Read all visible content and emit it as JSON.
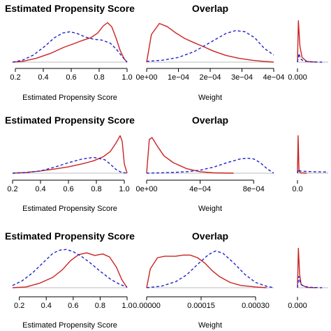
{
  "colors": {
    "treated": "#cc2222",
    "control": "#2222cc",
    "axis": "#000000",
    "baseline": "#bbbbbb"
  },
  "chart_data": [
    {
      "type": "line",
      "row": 1,
      "col": 1,
      "title": "Estimated Propensity Score",
      "xlabel": "Estimated Propensity Score",
      "xlim": [
        0.18,
        1.0
      ],
      "ylim": [
        0,
        1.08
      ],
      "xticks": [
        0.2,
        0.4,
        0.6,
        0.8,
        1.0
      ],
      "xtick_labels": [
        "0.2",
        "0.4",
        "0.6",
        "0.8",
        "1.0"
      ],
      "series": [
        {
          "role": "treated",
          "style": "solid",
          "x": [
            0.18,
            0.25,
            0.35,
            0.45,
            0.55,
            0.62,
            0.68,
            0.74,
            0.79,
            0.83,
            0.86,
            0.89,
            0.92,
            0.95,
            0.98,
            1.0
          ],
          "y": [
            0.0,
            0.02,
            0.1,
            0.22,
            0.38,
            0.47,
            0.55,
            0.62,
            0.74,
            0.92,
            1.0,
            0.9,
            0.62,
            0.3,
            0.08,
            0.0
          ]
        },
        {
          "role": "control",
          "style": "dashed",
          "x": [
            0.18,
            0.25,
            0.33,
            0.41,
            0.48,
            0.54,
            0.59,
            0.64,
            0.7,
            0.76,
            0.82,
            0.88,
            0.93,
            0.97,
            1.0
          ],
          "y": [
            0.0,
            0.05,
            0.18,
            0.4,
            0.62,
            0.74,
            0.77,
            0.73,
            0.64,
            0.58,
            0.56,
            0.48,
            0.3,
            0.12,
            0.0
          ]
        }
      ]
    },
    {
      "type": "line",
      "row": 1,
      "col": 2,
      "title": "Overlap",
      "xlabel": "Weight",
      "xlim": [
        0,
        0.0004
      ],
      "ylim": [
        0,
        1.08
      ],
      "xticks": [
        0,
        0.0001,
        0.0002,
        0.0003,
        0.0004
      ],
      "xtick_labels": [
        "0e+00",
        "1e−04",
        "2e−04",
        "3e−04",
        "4e−04"
      ],
      "series": [
        {
          "role": "treated",
          "style": "solid",
          "x": [
            0.0,
            1.5e-05,
            4e-05,
            6.5e-05,
            9e-05,
            0.00012,
            0.00015,
            0.00018,
            0.00021,
            0.00025,
            0.00029,
            0.00033,
            0.00037,
            0.0004
          ],
          "y": [
            0.0,
            0.7,
            0.98,
            0.9,
            0.75,
            0.6,
            0.49,
            0.39,
            0.28,
            0.17,
            0.1,
            0.05,
            0.02,
            0.0
          ]
        },
        {
          "role": "control",
          "style": "dashed",
          "x": [
            0.0,
            5e-05,
            0.0001,
            0.00015,
            0.0002,
            0.00025,
            0.00028,
            0.00031,
            0.00034,
            0.00037,
            0.0004
          ],
          "y": [
            0.02,
            0.05,
            0.12,
            0.27,
            0.5,
            0.73,
            0.8,
            0.77,
            0.62,
            0.35,
            0.18
          ]
        }
      ]
    },
    {
      "type": "line",
      "row": 1,
      "col": 3,
      "title": "",
      "xlabel": "",
      "xlim": [
        0,
        0.001
      ],
      "ylim": [
        0,
        1.08
      ],
      "xticks": [
        0
      ],
      "xtick_labels": [
        "0.000"
      ],
      "series": [
        {
          "role": "treated",
          "style": "solid",
          "x": [
            0.0,
            3e-05,
            8e-05,
            0.00015,
            0.0003,
            0.0006
          ],
          "y": [
            0.0,
            1.05,
            0.4,
            0.12,
            0.02,
            0.0
          ]
        },
        {
          "role": "control",
          "style": "dashed",
          "x": [
            0.0,
            5e-05,
            0.0001,
            0.0002,
            0.0004,
            0.0008
          ],
          "y": [
            0.0,
            0.22,
            0.08,
            0.03,
            0.01,
            0.0
          ]
        }
      ]
    },
    {
      "type": "line",
      "row": 2,
      "col": 1,
      "title": "Estimated Propensity Score",
      "xlabel": "Estimated Propensity Score",
      "xlim": [
        0.2,
        1.02
      ],
      "ylim": [
        0,
        1.08
      ],
      "xticks": [
        0.2,
        0.4,
        0.6,
        0.8,
        1.0
      ],
      "xtick_labels": [
        "0.2",
        "0.4",
        "0.6",
        "0.8",
        "1.0"
      ],
      "series": [
        {
          "role": "treated",
          "style": "solid",
          "x": [
            0.2,
            0.3,
            0.4,
            0.5,
            0.6,
            0.7,
            0.78,
            0.85,
            0.9,
            0.94,
            0.97,
            0.985,
            1.0,
            1.02
          ],
          "y": [
            0.0,
            0.02,
            0.06,
            0.11,
            0.17,
            0.25,
            0.33,
            0.44,
            0.58,
            0.8,
            1.0,
            0.85,
            0.25,
            0.0
          ]
        },
        {
          "role": "control",
          "style": "dashed",
          "x": [
            0.2,
            0.3,
            0.4,
            0.5,
            0.6,
            0.7,
            0.78,
            0.86,
            0.9,
            0.94,
            0.98,
            1.02
          ],
          "y": [
            0.0,
            0.02,
            0.06,
            0.16,
            0.28,
            0.38,
            0.42,
            0.36,
            0.24,
            0.1,
            0.02,
            0.0
          ]
        }
      ]
    },
    {
      "type": "line",
      "row": 2,
      "col": 2,
      "title": "Overlap",
      "xlabel": "Weight",
      "xlim": [
        0,
        0.00095
      ],
      "ylim": [
        0,
        1.08
      ],
      "xticks": [
        0,
        0.0004,
        0.0008
      ],
      "xtick_labels": [
        "0e+00",
        "4e−04",
        "8e−04"
      ],
      "series": [
        {
          "role": "treated",
          "style": "solid",
          "x": [
            0.0,
            2e-05,
            4e-05,
            8e-05,
            0.00013,
            0.0002,
            0.0003,
            0.0004,
            0.0005,
            0.00065
          ],
          "y": [
            0.0,
            0.9,
            0.95,
            0.72,
            0.46,
            0.28,
            0.12,
            0.04,
            0.01,
            0.0
          ]
        },
        {
          "role": "control",
          "style": "dashed",
          "x": [
            0.0,
            0.0001,
            0.0002,
            0.0003,
            0.0004,
            0.0005,
            0.0006,
            0.0007,
            0.00075,
            0.0008,
            0.00085,
            0.0009,
            0.00095
          ],
          "y": [
            0.0,
            0.01,
            0.02,
            0.04,
            0.08,
            0.16,
            0.28,
            0.38,
            0.4,
            0.38,
            0.28,
            0.12,
            0.0
          ]
        }
      ]
    },
    {
      "type": "line",
      "row": 2,
      "col": 3,
      "title": "",
      "xlabel": "",
      "xlim": [
        0,
        0.001
      ],
      "ylim": [
        0,
        1.08
      ],
      "xticks": [
        0
      ],
      "xtick_labels": [
        "0.0"
      ],
      "series": [
        {
          "role": "treated",
          "style": "solid",
          "x": [
            0.0,
            2e-05,
            5e-05,
            0.0001,
            0.0003
          ],
          "y": [
            0.0,
            1.0,
            0.05,
            0.01,
            0.0
          ]
        },
        {
          "role": "control",
          "style": "dashed",
          "x": [
            0.0,
            3e-05,
            8e-05,
            0.0002,
            0.0005,
            0.001
          ],
          "y": [
            0.0,
            0.1,
            0.06,
            0.05,
            0.04,
            0.03
          ]
        }
      ]
    },
    {
      "type": "line",
      "row": 3,
      "col": 1,
      "title": "Estimated Propensity Score",
      "xlabel": "Estimated Propensity Score",
      "xlim": [
        0.15,
        1.0
      ],
      "ylim": [
        0,
        1.08
      ],
      "xticks": [
        0.2,
        0.4,
        0.6,
        0.8,
        1.0
      ],
      "xtick_labels": [
        "0.2",
        "0.4",
        "0.6",
        "0.8",
        "1.0"
      ],
      "series": [
        {
          "role": "treated",
          "style": "solid",
          "x": [
            0.15,
            0.25,
            0.35,
            0.45,
            0.52,
            0.58,
            0.64,
            0.7,
            0.76,
            0.82,
            0.87,
            0.92,
            0.96,
            1.0
          ],
          "y": [
            0.0,
            0.02,
            0.12,
            0.28,
            0.48,
            0.72,
            0.88,
            0.93,
            0.86,
            0.9,
            0.82,
            0.55,
            0.22,
            0.0
          ]
        },
        {
          "role": "control",
          "style": "dashed",
          "x": [
            0.15,
            0.22,
            0.3,
            0.38,
            0.45,
            0.5,
            0.55,
            0.6,
            0.66,
            0.72,
            0.8,
            0.88,
            0.95,
            1.0
          ],
          "y": [
            0.06,
            0.18,
            0.4,
            0.68,
            0.92,
            1.0,
            1.02,
            0.96,
            0.84,
            0.68,
            0.44,
            0.22,
            0.08,
            0.02
          ]
        }
      ]
    },
    {
      "type": "line",
      "row": 3,
      "col": 2,
      "title": "Overlap",
      "xlabel": "Weight",
      "xlim": [
        0,
        0.00035
      ],
      "ylim": [
        0,
        1.08
      ],
      "xticks": [
        0,
        0.00015,
        0.0003
      ],
      "xtick_labels": [
        "0.00000",
        "0.00015",
        "0.00030"
      ],
      "series": [
        {
          "role": "treated",
          "style": "solid",
          "x": [
            0.0,
            1e-05,
            3e-05,
            5e-05,
            8e-05,
            0.0001,
            0.00012,
            0.00014,
            0.00016,
            0.00018,
            0.0002,
            0.00023,
            0.00026,
            0.0003,
            0.00033
          ],
          "y": [
            0.0,
            0.5,
            0.8,
            0.84,
            0.84,
            0.87,
            0.87,
            0.8,
            0.66,
            0.46,
            0.3,
            0.14,
            0.06,
            0.02,
            0.0
          ]
        },
        {
          "role": "control",
          "style": "dashed",
          "x": [
            0.0,
            4e-05,
            8e-05,
            0.00011,
            0.00014,
            0.00017,
            0.00019,
            0.00021,
            0.00024,
            0.00027,
            0.0003,
            0.00033,
            0.00035
          ],
          "y": [
            0.0,
            0.04,
            0.16,
            0.34,
            0.62,
            0.88,
            0.98,
            0.92,
            0.66,
            0.36,
            0.14,
            0.04,
            0.0
          ]
        }
      ]
    },
    {
      "type": "line",
      "row": 3,
      "col": 3,
      "title": "",
      "xlabel": "",
      "xlim": [
        0,
        0.001
      ],
      "ylim": [
        0,
        1.08
      ],
      "xticks": [
        0
      ],
      "xtick_labels": [
        "0.000"
      ],
      "series": [
        {
          "role": "treated",
          "style": "solid",
          "x": [
            0.0,
            3e-05,
            7e-05,
            0.00012,
            0.0003,
            0.0006
          ],
          "y": [
            0.0,
            1.05,
            0.35,
            0.08,
            0.01,
            0.0
          ]
        },
        {
          "role": "control",
          "style": "dashed",
          "x": [
            0.0,
            4e-05,
            0.0001,
            0.0002,
            0.0004,
            0.0008
          ],
          "y": [
            0.0,
            0.3,
            0.1,
            0.04,
            0.01,
            0.0
          ]
        }
      ]
    }
  ]
}
